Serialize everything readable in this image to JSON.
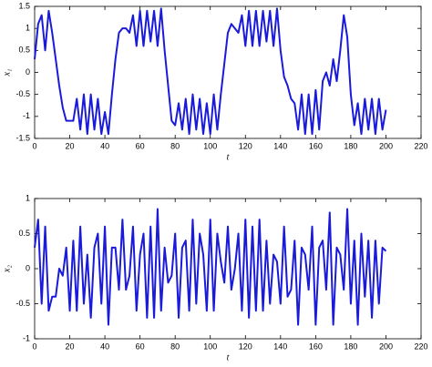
{
  "chart_data": [
    {
      "type": "line",
      "ylabel": "x₁",
      "xlabel": "t",
      "color": "#1a1adb",
      "x": [
        0,
        2,
        4,
        6,
        8,
        10,
        12,
        14,
        16,
        18,
        20,
        22,
        24,
        26,
        28,
        30,
        32,
        34,
        36,
        38,
        40,
        42,
        44,
        46,
        48,
        50,
        52,
        54,
        56,
        58,
        60,
        62,
        64,
        66,
        68,
        70,
        72,
        74,
        76,
        78,
        80,
        82,
        84,
        86,
        88,
        90,
        92,
        94,
        96,
        98,
        100,
        102,
        104,
        106,
        108,
        110,
        112,
        114,
        116,
        118,
        120,
        122,
        124,
        126,
        128,
        130,
        132,
        134,
        136,
        138,
        140,
        142,
        144,
        146,
        148,
        150,
        152,
        154,
        156,
        158,
        160,
        162,
        164,
        166,
        168,
        170,
        172,
        174,
        176,
        178,
        180,
        182,
        184,
        186,
        188,
        190,
        192,
        194,
        196,
        198,
        200
      ],
      "values": [
        0.3,
        1.1,
        1.3,
        0.5,
        1.4,
        0.9,
        0.3,
        -0.3,
        -0.8,
        -1.1,
        -1.1,
        -1.1,
        -0.6,
        -1.3,
        -0.5,
        -1.4,
        -0.5,
        -1.3,
        -0.6,
        -1.4,
        -0.9,
        -1.4,
        -0.5,
        0.3,
        0.9,
        1.0,
        1.0,
        0.9,
        1.3,
        0.6,
        1.4,
        0.6,
        1.4,
        0.7,
        1.4,
        0.6,
        1.45,
        0.5,
        -0.3,
        -1.1,
        -1.2,
        -0.7,
        -1.3,
        -0.6,
        -1.4,
        -0.5,
        -1.3,
        -0.6,
        -1.4,
        -0.7,
        -1.4,
        -0.5,
        -1.3,
        -0.5,
        0.2,
        0.9,
        1.1,
        1.0,
        0.9,
        1.3,
        0.6,
        1.4,
        0.6,
        1.4,
        0.6,
        1.4,
        0.7,
        1.4,
        0.6,
        1.45,
        0.5,
        -0.1,
        -0.3,
        -0.6,
        -0.7,
        -1.3,
        -0.5,
        -1.4,
        -0.5,
        -1.4,
        -0.4,
        -1.3,
        -0.2,
        0.0,
        -0.3,
        0.3,
        -0.2,
        0.5,
        1.3,
        0.8,
        -0.5,
        -1.2,
        -0.7,
        -1.4,
        -0.6,
        -1.3,
        -0.6,
        -1.4,
        -0.6,
        -1.3,
        -0.85
      ],
      "xlim": [
        0,
        220
      ],
      "xticks": [
        0,
        20,
        40,
        60,
        80,
        100,
        120,
        140,
        160,
        180,
        200,
        220
      ],
      "ylim": [
        -1.5,
        1.5
      ],
      "yticks": [
        -1.5,
        -1,
        -0.5,
        0,
        0.5,
        1,
        1.5
      ]
    },
    {
      "type": "line",
      "ylabel": "x₂",
      "xlabel": "t",
      "color": "#1a1adb",
      "x": [
        0,
        2,
        4,
        6,
        8,
        10,
        12,
        14,
        16,
        18,
        20,
        22,
        24,
        26,
        28,
        30,
        32,
        34,
        36,
        38,
        40,
        42,
        44,
        46,
        48,
        50,
        52,
        54,
        56,
        58,
        60,
        62,
        64,
        66,
        68,
        70,
        72,
        74,
        76,
        78,
        80,
        82,
        84,
        86,
        88,
        90,
        92,
        94,
        96,
        98,
        100,
        102,
        104,
        106,
        108,
        110,
        112,
        114,
        116,
        118,
        120,
        122,
        124,
        126,
        128,
        130,
        132,
        134,
        136,
        138,
        140,
        142,
        144,
        146,
        148,
        150,
        152,
        154,
        156,
        158,
        160,
        162,
        164,
        166,
        168,
        170,
        172,
        174,
        176,
        178,
        180,
        182,
        184,
        186,
        188,
        190,
        192,
        194,
        196,
        198,
        200
      ],
      "values": [
        0.3,
        0.7,
        -0.5,
        0.6,
        -0.6,
        -0.4,
        -0.4,
        0.0,
        -0.1,
        0.3,
        -0.6,
        0.4,
        -0.6,
        0.6,
        -0.5,
        0.2,
        -0.7,
        0.3,
        0.5,
        -0.5,
        0.6,
        -0.8,
        0.3,
        0.3,
        -0.3,
        0.7,
        -0.3,
        -0.1,
        0.6,
        -0.6,
        0.2,
        0.5,
        -0.7,
        0.6,
        -0.7,
        0.85,
        -0.6,
        0.3,
        -0.2,
        -0.1,
        0.5,
        -0.7,
        0.3,
        0.4,
        -0.6,
        0.7,
        -0.5,
        0.5,
        0.2,
        -0.6,
        0.7,
        -0.6,
        0.5,
        0.1,
        -0.2,
        0.6,
        -0.3,
        0.0,
        0.5,
        -0.6,
        0.7,
        -0.7,
        0.6,
        -0.6,
        0.7,
        -0.6,
        0.4,
        -0.5,
        0.2,
        0.1,
        -0.5,
        0.6,
        -0.4,
        -0.3,
        0.4,
        -0.8,
        0.3,
        0.2,
        -0.3,
        0.6,
        -0.8,
        0.3,
        0.4,
        -0.3,
        0.8,
        -0.8,
        0.3,
        0.2,
        -0.3,
        0.85,
        -0.5,
        0.4,
        -0.8,
        0.5,
        -0.4,
        0.4,
        -0.7,
        0.4,
        -0.5,
        0.3,
        0.25
      ],
      "xlim": [
        0,
        220
      ],
      "xticks": [
        0,
        20,
        40,
        60,
        80,
        100,
        120,
        140,
        160,
        180,
        200,
        220
      ],
      "ylim": [
        -1,
        1
      ],
      "yticks": [
        -1,
        -0.5,
        0,
        0.5,
        1
      ]
    }
  ]
}
